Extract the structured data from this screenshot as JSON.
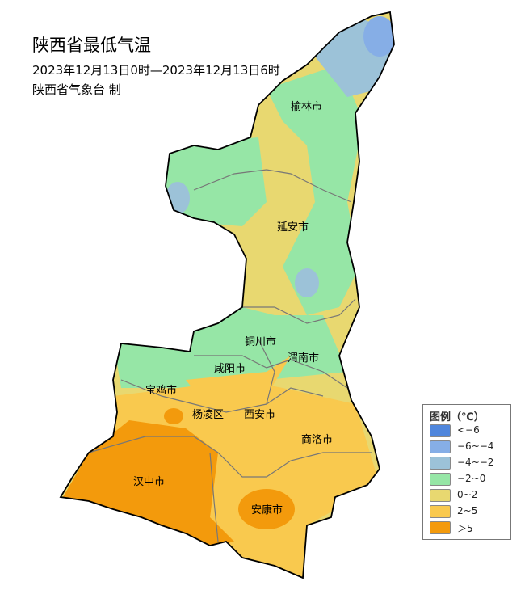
{
  "title": "陕西省最低气温",
  "period": "2023年12月13日0时—2023年12月13日6时",
  "producer": "陕西省气象台 制",
  "cities": [
    "榆林市",
    "延安市",
    "铜川市",
    "渭南市",
    "咸阳市",
    "宝鸡市",
    "杨凌区",
    "西安市",
    "商洛市",
    "汉中市",
    "安康市"
  ],
  "legend": {
    "title": "图例（℃）",
    "items": [
      {
        "label": "<−6",
        "color": "#4f86dc"
      },
      {
        "label": "−6~−4",
        "color": "#86aee6"
      },
      {
        "label": "−4~−2",
        "color": "#9cc2d8"
      },
      {
        "label": "−2~0",
        "color": "#96e6a6"
      },
      {
        "label": "0~2",
        "color": "#e8d870"
      },
      {
        "label": "2~5",
        "color": "#f9c94e"
      },
      {
        "label": "＞5",
        "color": "#f39a0c"
      }
    ]
  }
}
